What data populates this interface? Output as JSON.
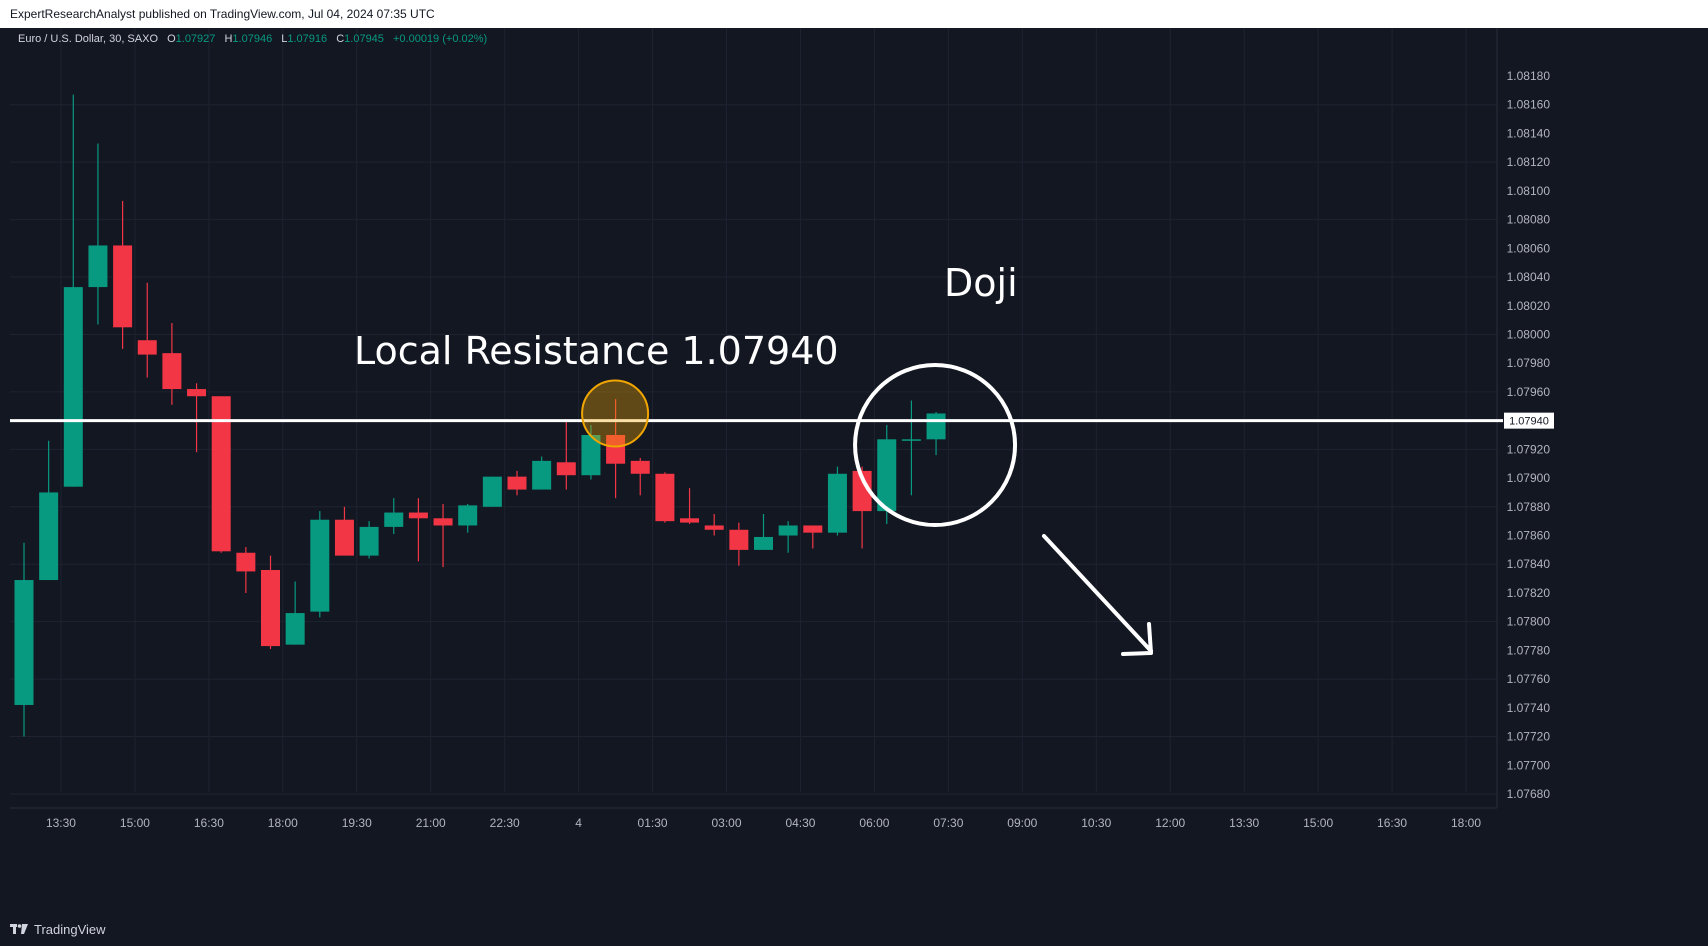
{
  "header": {
    "publisher_line": "ExpertResearchAnalyst published on TradingView.com, Jul 04, 2024 07:35 UTC"
  },
  "footer": {
    "brand": "TradingView"
  },
  "legend": {
    "symbol": "Euro / U.S. Dollar, 30, SAXO",
    "o_label": "O",
    "o_value": "1.07927",
    "h_label": "H",
    "h_value": "1.07946",
    "l_label": "L",
    "l_value": "1.07916",
    "c_label": "C",
    "c_value": "1.07945",
    "change": "+0.00019 (+0.02%)"
  },
  "colors": {
    "up": "#089981",
    "down": "#f23645",
    "background": "#131722",
    "grid": "#1f2331",
    "resistance": "#ffffff",
    "highlight": "#f0a500"
  },
  "chart_data": {
    "type": "candlestick",
    "symbol": "EURUSD",
    "timeframe": "30",
    "x_tick_labels": [
      "13:30",
      "15:00",
      "16:30",
      "18:00",
      "19:30",
      "21:00",
      "22:30",
      "4",
      "01:30",
      "03:00",
      "04:30",
      "06:00",
      "07:30",
      "09:00",
      "10:30",
      "12:00",
      "13:30",
      "15:00",
      "16:30",
      "18:00"
    ],
    "y_tick_labels": [
      "1.08180",
      "1.08160",
      "1.08140",
      "1.08120",
      "1.08100",
      "1.08080",
      "1.08060",
      "1.08040",
      "1.08020",
      "1.08000",
      "1.07980",
      "1.07960",
      "1.07940",
      "1.07920",
      "1.07900",
      "1.07880",
      "1.07860",
      "1.07840",
      "1.07820",
      "1.07800",
      "1.07780",
      "1.07760",
      "1.07740",
      "1.07720",
      "1.07700",
      "1.07680"
    ],
    "ylim": [
      1.0767,
      1.0819
    ],
    "price_label": "1.07940",
    "candles": [
      {
        "t": "13:00",
        "o": 1.07742,
        "h": 1.07855,
        "l": 1.0772,
        "c": 1.07829
      },
      {
        "t": "13:30",
        "o": 1.07829,
        "h": 1.07926,
        "l": 1.07829,
        "c": 1.0789
      },
      {
        "t": "14:00",
        "o": 1.07894,
        "h": 1.08167,
        "l": 1.07894,
        "c": 1.08033
      },
      {
        "t": "14:30",
        "o": 1.08033,
        "h": 1.08133,
        "l": 1.08007,
        "c": 1.08062
      },
      {
        "t": "15:00",
        "o": 1.08062,
        "h": 1.08093,
        "l": 1.0799,
        "c": 1.08005
      },
      {
        "t": "15:30",
        "o": 1.07996,
        "h": 1.08036,
        "l": 1.0797,
        "c": 1.07986
      },
      {
        "t": "16:00",
        "o": 1.07987,
        "h": 1.08008,
        "l": 1.07951,
        "c": 1.07962
      },
      {
        "t": "16:30",
        "o": 1.07962,
        "h": 1.07966,
        "l": 1.07918,
        "c": 1.07957
      },
      {
        "t": "17:00",
        "o": 1.07957,
        "h": 1.07957,
        "l": 1.07848,
        "c": 1.07849
      },
      {
        "t": "17:30",
        "o": 1.07848,
        "h": 1.07852,
        "l": 1.0782,
        "c": 1.07835
      },
      {
        "t": "18:00",
        "o": 1.07836,
        "h": 1.07846,
        "l": 1.07781,
        "c": 1.07783
      },
      {
        "t": "18:30",
        "o": 1.07784,
        "h": 1.07828,
        "l": 1.07784,
        "c": 1.07806
      },
      {
        "t": "19:00",
        "o": 1.07807,
        "h": 1.07877,
        "l": 1.07803,
        "c": 1.07871
      },
      {
        "t": "19:30",
        "o": 1.07871,
        "h": 1.0788,
        "l": 1.07846,
        "c": 1.07846
      },
      {
        "t": "20:00",
        "o": 1.07846,
        "h": 1.0787,
        "l": 1.07844,
        "c": 1.07866
      },
      {
        "t": "20:30",
        "o": 1.07866,
        "h": 1.07886,
        "l": 1.07861,
        "c": 1.07876
      },
      {
        "t": "21:00",
        "o": 1.07876,
        "h": 1.07886,
        "l": 1.07842,
        "c": 1.07872
      },
      {
        "t": "21:30",
        "o": 1.07872,
        "h": 1.07882,
        "l": 1.07838,
        "c": 1.07867
      },
      {
        "t": "22:00",
        "o": 1.07867,
        "h": 1.07882,
        "l": 1.07862,
        "c": 1.07881
      },
      {
        "t": "22:30",
        "o": 1.0788,
        "h": 1.07901,
        "l": 1.0788,
        "c": 1.07901
      },
      {
        "t": "23:00",
        "o": 1.07901,
        "h": 1.07905,
        "l": 1.07888,
        "c": 1.07892
      },
      {
        "t": "23:30",
        "o": 1.07892,
        "h": 1.07915,
        "l": 1.07892,
        "c": 1.07912
      },
      {
        "t": "00:00",
        "o": 1.07911,
        "h": 1.0794,
        "l": 1.07892,
        "c": 1.07902
      },
      {
        "t": "00:30",
        "o": 1.07902,
        "h": 1.07937,
        "l": 1.07899,
        "c": 1.0793
      },
      {
        "t": "01:00",
        "o": 1.0793,
        "h": 1.07955,
        "l": 1.07886,
        "c": 1.0791
      },
      {
        "t": "01:30",
        "o": 1.07912,
        "h": 1.07914,
        "l": 1.07888,
        "c": 1.07903
      },
      {
        "t": "02:00",
        "o": 1.07903,
        "h": 1.07904,
        "l": 1.07869,
        "c": 1.0787
      },
      {
        "t": "02:30",
        "o": 1.07872,
        "h": 1.07893,
        "l": 1.07868,
        "c": 1.07869
      },
      {
        "t": "03:00",
        "o": 1.07867,
        "h": 1.07875,
        "l": 1.0786,
        "c": 1.07864
      },
      {
        "t": "03:30",
        "o": 1.07864,
        "h": 1.07869,
        "l": 1.07839,
        "c": 1.0785
      },
      {
        "t": "04:00",
        "o": 1.0785,
        "h": 1.07875,
        "l": 1.0785,
        "c": 1.07859
      },
      {
        "t": "04:30",
        "o": 1.0786,
        "h": 1.0787,
        "l": 1.07848,
        "c": 1.07867
      },
      {
        "t": "05:00",
        "o": 1.07867,
        "h": 1.07867,
        "l": 1.07851,
        "c": 1.07862
      },
      {
        "t": "05:30",
        "o": 1.07862,
        "h": 1.07908,
        "l": 1.0786,
        "c": 1.07903
      },
      {
        "t": "06:00",
        "o": 1.07905,
        "h": 1.07908,
        "l": 1.07851,
        "c": 1.07877
      },
      {
        "t": "06:30",
        "o": 1.07877,
        "h": 1.07937,
        "l": 1.07868,
        "c": 1.07927
      },
      {
        "t": "07:00",
        "o": 1.07926,
        "h": 1.07954,
        "l": 1.07888,
        "c": 1.07927
      },
      {
        "t": "07:30",
        "o": 1.07927,
        "h": 1.07946,
        "l": 1.07916,
        "c": 1.07945
      }
    ],
    "resistance_level": 1.0794,
    "annotations": [
      {
        "kind": "text",
        "text": "Local Resistance 1.07940"
      },
      {
        "kind": "text",
        "text": "Doji"
      }
    ]
  }
}
